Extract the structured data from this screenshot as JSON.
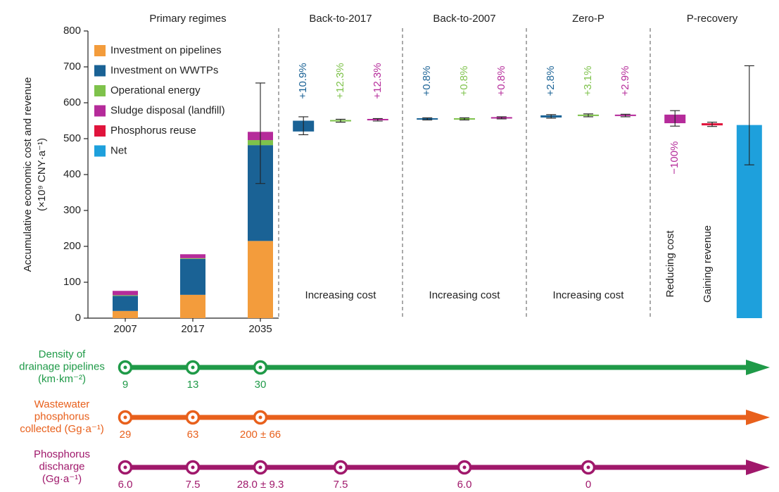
{
  "chart_data": {
    "type": "stacked_bar",
    "panel_title": "Primary regimes",
    "y_label": [
      "Accumulative economic cost and revenue",
      "(×10⁹ CNY·a⁻¹)"
    ],
    "ylim": [
      0,
      800
    ],
    "yticks": [
      0,
      100,
      200,
      300,
      400,
      500,
      600,
      700,
      800
    ],
    "categories": [
      "2007",
      "2017",
      "2035"
    ],
    "series": [
      {
        "name": "Investment on pipelines",
        "color": "#f39c3c",
        "values": [
          20,
          65,
          215
        ]
      },
      {
        "name": "Investment on WWTPs",
        "color": "#1a6295",
        "values": [
          42,
          100,
          267
        ]
      },
      {
        "name": "Operational energy",
        "color": "#7ec24b",
        "values": [
          2,
          2,
          14
        ]
      },
      {
        "name": "Sludge disposal (landfill)",
        "color": "#b52b9a",
        "values": [
          12,
          11,
          23
        ]
      },
      {
        "name": "Phosphorus reuse",
        "color": "#e0143c",
        "values": [
          null,
          null,
          null
        ]
      },
      {
        "name": "Net",
        "color": "#1ea0dc",
        "values": [
          null,
          null,
          null
        ]
      }
    ],
    "error_bars": [
      null,
      null,
      [
        375,
        655
      ]
    ],
    "legend": "upper left",
    "scenarios": [
      {
        "title": "Back-to-2017",
        "note": "Increasing cost",
        "items": [
          {
            "color": "#1a6295",
            "box": [
              520,
              550
            ],
            "whisker": [
              511,
              561
            ],
            "label": "+10.9%"
          },
          {
            "color": "#7ec24b",
            "box": [
              548,
              552
            ],
            "whisker": [
              546,
              554
            ],
            "label": "+12.3%"
          },
          {
            "color": "#b52b9a",
            "box": [
              551,
              555
            ],
            "whisker": [
              549,
              556
            ],
            "label": "+12.3%"
          }
        ]
      },
      {
        "title": "Back-to-2007",
        "note": "Increasing cost",
        "items": [
          {
            "color": "#1a6295",
            "box": [
              553,
              557
            ],
            "whisker": [
              552,
              558
            ],
            "label": "+0.8%"
          },
          {
            "color": "#7ec24b",
            "box": [
              553,
              557
            ],
            "whisker": [
              552,
              558
            ],
            "label": "+0.8%"
          },
          {
            "color": "#b52b9a",
            "box": [
              556,
              560
            ],
            "whisker": [
              555,
              561
            ],
            "label": "+0.8%"
          }
        ]
      },
      {
        "title": "Zero-P",
        "note": "Increasing cost",
        "items": [
          {
            "color": "#1a6295",
            "box": [
              559,
              565
            ],
            "whisker": [
              557,
              567
            ],
            "label": "+2.8%"
          },
          {
            "color": "#7ec24b",
            "box": [
              563,
              567
            ],
            "whisker": [
              561,
              569
            ],
            "label": "+3.1%"
          },
          {
            "color": "#b52b9a",
            "box": [
              563,
              567
            ],
            "whisker": [
              561,
              568
            ],
            "label": "+2.9%"
          }
        ]
      },
      {
        "title": "P-recovery",
        "items": [
          {
            "color": "#b52b9a",
            "box": [
              543,
              567
            ],
            "whisker": [
              535,
              578
            ],
            "label": "−100%",
            "note": "Reducing cost"
          },
          {
            "color": "#e0143c",
            "box": [
              537,
              543
            ],
            "whisker": [
              534,
              546
            ],
            "note": "Gaining revenue"
          },
          {
            "color": "#1ea0dc",
            "box": [
              0,
              538
            ],
            "whisker": [
              427,
              703
            ]
          }
        ]
      }
    ]
  },
  "timelines": [
    {
      "label": [
        "Density of",
        "drainage pipelines",
        "(km·km⁻²)"
      ],
      "color": "#1f9a48",
      "values": [
        9,
        13,
        30
      ],
      "value_labels": [
        "9",
        "13",
        "30"
      ],
      "errors": [
        null,
        null,
        null
      ]
    },
    {
      "label": [
        "Wastewater",
        "phosphorus",
        "collected (Gg·a⁻¹)"
      ],
      "color": "#e8601c",
      "values": [
        29,
        63,
        200
      ],
      "value_labels": [
        "29",
        "63",
        "200 ± 66"
      ],
      "errors": [
        null,
        null,
        66
      ]
    },
    {
      "label": [
        "Phosphorus",
        "discharge",
        "(Gg·a⁻¹)"
      ],
      "color": "#a0186b",
      "values": [
        6.0,
        7.5,
        28.0,
        7.5,
        6.0,
        0
      ],
      "value_labels": [
        "6.0",
        "7.5",
        "28.0 ± 9.3",
        "7.5",
        "6.0",
        "0"
      ],
      "errors": [
        null,
        null,
        9.3,
        null,
        null,
        null
      ]
    }
  ]
}
